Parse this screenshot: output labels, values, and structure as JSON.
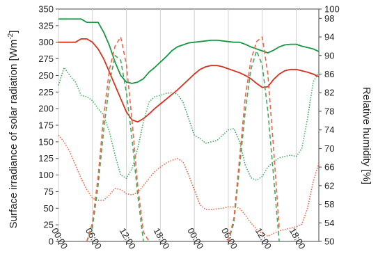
{
  "chart_data": {
    "type": "line",
    "ylabel_left_text": "Surface irradiance of solar radiation [Wm",
    "ylabel_left_sup": "-2",
    "ylabel_left_end": "]",
    "ylabel_right": "Relative humidity [%]",
    "ylim_left": [
      0,
      350
    ],
    "ylim_right": [
      50,
      100
    ],
    "yticks_left": [
      0,
      25,
      50,
      75,
      100,
      125,
      150,
      175,
      200,
      225,
      250,
      275,
      300,
      325,
      350
    ],
    "yticks_right": [
      50,
      54,
      58,
      62,
      66,
      70,
      74,
      78,
      82,
      86,
      90,
      94,
      98,
      100
    ],
    "xlim": [
      0,
      46
    ],
    "xticks": [
      {
        "x": 0,
        "label": "00:00"
      },
      {
        "x": 6,
        "label": "06:00"
      },
      {
        "x": 12,
        "label": "12:00"
      },
      {
        "x": 18,
        "label": "18:00"
      },
      {
        "x": 24,
        "label": "00:00"
      },
      {
        "x": 30,
        "label": "06:00"
      },
      {
        "x": 36,
        "label": "12:00"
      },
      {
        "x": 42,
        "label": "18:00"
      }
    ],
    "grid": "vertical",
    "series": [
      {
        "style": "solid",
        "color": "#1a9641",
        "axis": "left",
        "x": [
          0,
          1,
          2,
          3,
          4,
          5,
          6,
          7,
          8,
          9,
          10,
          11,
          12,
          13,
          14,
          15,
          16,
          17,
          18,
          19,
          20,
          21,
          22,
          23,
          24,
          25,
          26,
          27,
          28,
          29,
          30,
          31,
          32,
          33,
          34,
          35,
          36,
          37,
          38,
          39,
          40,
          41,
          42,
          43,
          44,
          45,
          46
        ],
        "y": [
          335,
          335,
          335,
          335,
          335,
          330,
          330,
          330,
          315,
          295,
          270,
          250,
          240,
          238,
          240,
          245,
          255,
          262,
          270,
          278,
          287,
          293,
          296,
          299,
          300,
          301,
          302,
          303,
          303,
          302,
          301,
          300,
          300,
          297,
          293,
          290,
          287,
          284,
          288,
          293,
          296,
          297,
          297,
          294,
          292,
          290,
          286
        ]
      },
      {
        "style": "solid",
        "color": "#d7301f",
        "axis": "left",
        "x": [
          0,
          1,
          2,
          3,
          4,
          5,
          6,
          7,
          8,
          9,
          10,
          11,
          12,
          13,
          14,
          15,
          16,
          17,
          18,
          19,
          20,
          21,
          22,
          23,
          24,
          25,
          26,
          27,
          28,
          29,
          30,
          31,
          32,
          33,
          34,
          35,
          36,
          37,
          38,
          39,
          40,
          41,
          42,
          43,
          44,
          45,
          46
        ],
        "y": [
          300,
          300,
          300,
          300,
          305,
          305,
          300,
          290,
          275,
          255,
          235,
          215,
          195,
          183,
          180,
          185,
          192,
          200,
          207,
          214,
          221,
          228,
          236,
          244,
          252,
          259,
          263,
          265,
          265,
          263,
          260,
          257,
          254,
          250,
          245,
          238,
          232,
          233,
          244,
          252,
          257,
          259,
          259,
          257,
          255,
          252,
          248
        ]
      },
      {
        "style": "dotted",
        "color": "#41ab5d",
        "axis": "left",
        "x": [
          0,
          1,
          2,
          3,
          4,
          5,
          6,
          7,
          8,
          9,
          10,
          11,
          12,
          13,
          14,
          15,
          16,
          17,
          18,
          19,
          20,
          21,
          22,
          23,
          24,
          25,
          26,
          27,
          28,
          29,
          30,
          31,
          32,
          33,
          34,
          35,
          36,
          37,
          38,
          39,
          40,
          41,
          42,
          43,
          44,
          45,
          46
        ],
        "y": [
          235,
          262,
          250,
          240,
          220,
          218,
          212,
          200,
          190,
          165,
          130,
          100,
          95,
          110,
          140,
          180,
          210,
          218,
          220,
          223,
          224,
          222,
          210,
          185,
          160,
          155,
          148,
          150,
          152,
          160,
          168,
          170,
          150,
          115,
          96,
          92,
          98,
          112,
          120,
          126,
          128,
          130,
          128,
          140,
          185,
          240,
          255
        ]
      },
      {
        "style": "dotted",
        "color": "#ef6548",
        "axis": "left",
        "x": [
          0,
          1,
          2,
          3,
          4,
          5,
          6,
          7,
          8,
          9,
          10,
          11,
          12,
          13,
          14,
          15,
          16,
          17,
          18,
          19,
          20,
          21,
          22,
          23,
          24,
          25,
          26,
          27,
          28,
          29,
          30,
          31,
          32,
          33,
          34,
          35,
          36,
          37,
          38,
          39,
          40,
          41,
          42,
          43,
          44,
          45,
          46
        ],
        "y": [
          160,
          150,
          135,
          115,
          95,
          78,
          65,
          62,
          62,
          70,
          80,
          78,
          72,
          70,
          74,
          84,
          95,
          105,
          112,
          118,
          122,
          125,
          120,
          100,
          78,
          55,
          48,
          48,
          49,
          50,
          52,
          52,
          50,
          40,
          28,
          18,
          12,
          8,
          12,
          16,
          18,
          20,
          22,
          26,
          50,
          90,
          118
        ]
      },
      {
        "style": "dashed",
        "color": "#41ab5d",
        "axis": "right",
        "x": [
          5,
          6,
          7,
          8,
          9,
          10,
          11,
          12,
          13,
          14,
          15,
          16,
          30,
          31,
          32,
          33,
          34,
          35,
          36,
          37,
          38,
          39
        ],
        "y": [
          50,
          53,
          62,
          74,
          84,
          90,
          89,
          82,
          72,
          60,
          50,
          50,
          50,
          54,
          66,
          78,
          87,
          91,
          88,
          78,
          64,
          50
        ]
      },
      {
        "style": "dashed",
        "color": "#ef6548",
        "axis": "right",
        "x": [
          5,
          6,
          7,
          8,
          9,
          10,
          11,
          12,
          13,
          14,
          15,
          16,
          30,
          31,
          32,
          33,
          34,
          35,
          36,
          37,
          38,
          39
        ],
        "y": [
          50,
          54,
          64,
          77,
          87,
          92,
          94,
          88,
          76,
          62,
          52,
          50,
          50,
          55,
          68,
          81,
          89,
          93,
          94,
          86,
          70,
          53
        ]
      }
    ]
  }
}
